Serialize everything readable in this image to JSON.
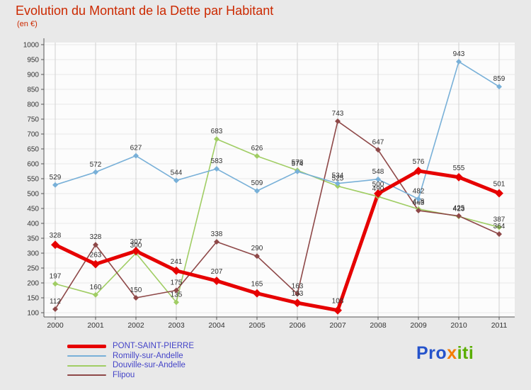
{
  "title": "Evolution du Montant de la Dette par Habitant",
  "subtitle": "(en €)",
  "colors": {
    "title": "#cc2900",
    "background": "#e9e9e9",
    "plot_background": "#fcfcfc",
    "gridline_vertical": "#cfcfcf",
    "gridline_horizontal": "#e9e9e9",
    "axis": "#555555",
    "value_label": "#333333",
    "legend_text": "#4444c8"
  },
  "chart_data": {
    "type": "line",
    "title": "Evolution du Montant de la Dette par Habitant",
    "subtitle": "(en €)",
    "categories": [
      "2000",
      "2001",
      "2002",
      "2003",
      "2004",
      "2005",
      "2006",
      "2007",
      "2008",
      "2009",
      "2010",
      "2011"
    ],
    "ylim": [
      100,
      1000
    ],
    "ytick_step": 50,
    "grid": true,
    "legend_position": "bottom-left",
    "series": [
      {
        "name": "PONT-SAINT-PIERRE",
        "color": "#e60000",
        "line_width": 5,
        "values": [
          328,
          263,
          307,
          241,
          207,
          165,
          133,
          108,
          500,
          576,
          555,
          501
        ]
      },
      {
        "name": "Romilly-sur-Andelle",
        "color": "#78b0d8",
        "line_width": 1.6,
        "values": [
          529,
          572,
          627,
          544,
          583,
          509,
          574,
          534,
          548,
          482,
          943,
          859
        ]
      },
      {
        "name": "Douville-sur-Andelle",
        "color": "#a0cd64",
        "line_width": 1.6,
        "values": [
          197,
          160,
          300,
          135,
          683,
          626,
          578,
          525,
          490,
          448,
          423,
          387
        ]
      },
      {
        "name": "Flipou",
        "color": "#8e4848",
        "line_width": 1.6,
        "values": [
          112,
          328,
          150,
          175,
          338,
          290,
          163,
          743,
          647,
          443,
          425,
          364
        ]
      }
    ]
  },
  "logo": {
    "parts": [
      {
        "text": "Pro",
        "color": "#2553cb"
      },
      {
        "text": "x",
        "color": "#f57c00"
      },
      {
        "text": "iti",
        "color": "#5aae00"
      }
    ]
  }
}
